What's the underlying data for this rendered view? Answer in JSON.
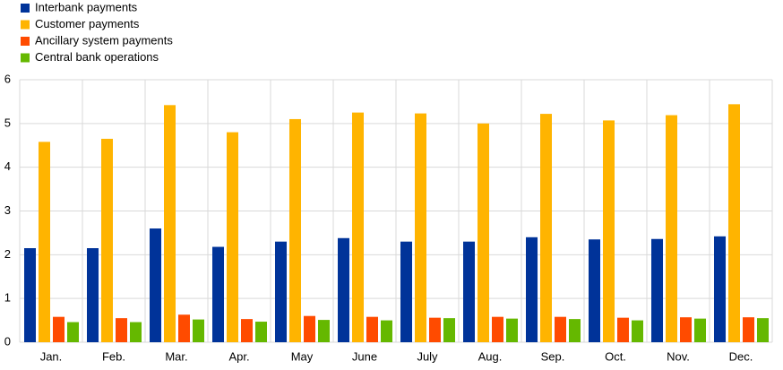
{
  "chart_data": {
    "type": "bar",
    "categories": [
      "Jan.",
      "Feb.",
      "Mar.",
      "Apr.",
      "May",
      "June",
      "July",
      "Aug.",
      "Sep.",
      "Oct.",
      "Nov.",
      "Dec."
    ],
    "series": [
      {
        "name": "Interbank payments",
        "color": "#003399",
        "values": [
          2.15,
          2.15,
          2.6,
          2.18,
          2.3,
          2.38,
          2.3,
          2.3,
          2.4,
          2.35,
          2.36,
          2.42
        ]
      },
      {
        "name": "Customer payments",
        "color": "#ffb400",
        "values": [
          4.58,
          4.65,
          5.42,
          4.8,
          5.1,
          5.25,
          5.23,
          5.0,
          5.22,
          5.07,
          5.19,
          5.44
        ]
      },
      {
        "name": "Ancillary system payments",
        "color": "#ff4b00",
        "values": [
          0.58,
          0.55,
          0.63,
          0.53,
          0.6,
          0.58,
          0.56,
          0.58,
          0.58,
          0.56,
          0.57,
          0.57
        ]
      },
      {
        "name": "Central bank operations",
        "color": "#65b800",
        "values": [
          0.46,
          0.46,
          0.52,
          0.47,
          0.51,
          0.5,
          0.55,
          0.54,
          0.53,
          0.5,
          0.54,
          0.55
        ]
      }
    ],
    "ylim": [
      0,
      6
    ],
    "yticks": [
      0,
      1,
      2,
      3,
      4,
      5,
      6
    ],
    "grid": true,
    "legend": "top-left"
  }
}
